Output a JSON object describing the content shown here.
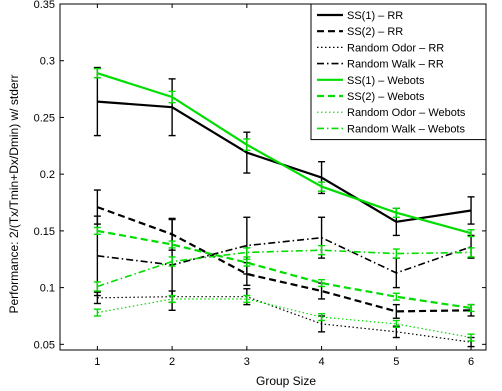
{
  "chart_data": {
    "type": "line",
    "title": "",
    "xlabel": "Group Size",
    "ylabel": "Performance: 2/(Tx/Tmin+Dx/Dmin) w/ stderr",
    "xlim": [
      0.5,
      6.2
    ],
    "ylim": [
      0.045,
      0.35
    ],
    "x": [
      1,
      2,
      3,
      4,
      5,
      6
    ],
    "xticks": [
      "1",
      "2",
      "3",
      "4",
      "5",
      "6"
    ],
    "yticks": [
      "0.05",
      "0.1",
      "0.15",
      "0.2",
      "0.25",
      "0.3",
      "0.35"
    ],
    "ytick_values": [
      0.05,
      0.1,
      0.15,
      0.2,
      0.25,
      0.3,
      0.35
    ],
    "grid": false,
    "legend_position": "top-right",
    "series": [
      {
        "name": "SS(1) – RR",
        "color": "#000000",
        "dash": "solid",
        "width": 2.2,
        "values": [
          0.264,
          0.259,
          0.219,
          0.197,
          0.158,
          0.168
        ],
        "errors": [
          0.03,
          0.025,
          0.018,
          0.014,
          0.012,
          0.012
        ]
      },
      {
        "name": "SS(2) – RR",
        "color": "#000000",
        "dash": "dashed",
        "width": 2.2,
        "values": [
          0.171,
          0.147,
          0.112,
          0.097,
          0.079,
          0.08
        ],
        "errors": [
          0.015,
          0.014,
          0.01,
          0.007,
          0.006,
          0.005
        ]
      },
      {
        "name": "Random Odor – RR",
        "color": "#000000",
        "dash": "dotted",
        "width": 1.2,
        "values": [
          0.091,
          0.092,
          0.092,
          0.068,
          0.061,
          0.052
        ],
        "errors": [
          0.005,
          0.005,
          0.007,
          0.007,
          0.005,
          0.004
        ]
      },
      {
        "name": "Random Walk – RR",
        "color": "#000000",
        "dash": "dashdot",
        "width": 1.6,
        "values": [
          0.128,
          0.12,
          0.137,
          0.144,
          0.113,
          0.136
        ],
        "errors": [
          0.035,
          0.04,
          0.025,
          0.018,
          0.013,
          0.01
        ]
      },
      {
        "name": "SS(1) – Webots",
        "color": "#00dd00",
        "dash": "solid",
        "width": 2.2,
        "values": [
          0.289,
          0.268,
          0.226,
          0.189,
          0.166,
          0.148
        ],
        "errors": [
          0.004,
          0.005,
          0.005,
          0.004,
          0.004,
          0.003
        ]
      },
      {
        "name": "SS(2) – Webots",
        "color": "#00dd00",
        "dash": "dashed",
        "width": 2.2,
        "values": [
          0.15,
          0.138,
          0.122,
          0.104,
          0.092,
          0.082
        ],
        "errors": [
          0.003,
          0.003,
          0.003,
          0.003,
          0.003,
          0.003
        ]
      },
      {
        "name": "Random Odor – Webots",
        "color": "#00dd00",
        "dash": "dotted",
        "width": 1.2,
        "values": [
          0.078,
          0.09,
          0.09,
          0.074,
          0.068,
          0.056
        ],
        "errors": [
          0.003,
          0.003,
          0.003,
          0.003,
          0.003,
          0.003
        ]
      },
      {
        "name": "Random Walk – Webots",
        "color": "#00dd00",
        "dash": "dashdot",
        "width": 1.6,
        "values": [
          0.101,
          0.123,
          0.131,
          0.133,
          0.13,
          0.131
        ],
        "errors": [
          0.004,
          0.004,
          0.004,
          0.004,
          0.004,
          0.004
        ]
      }
    ]
  }
}
